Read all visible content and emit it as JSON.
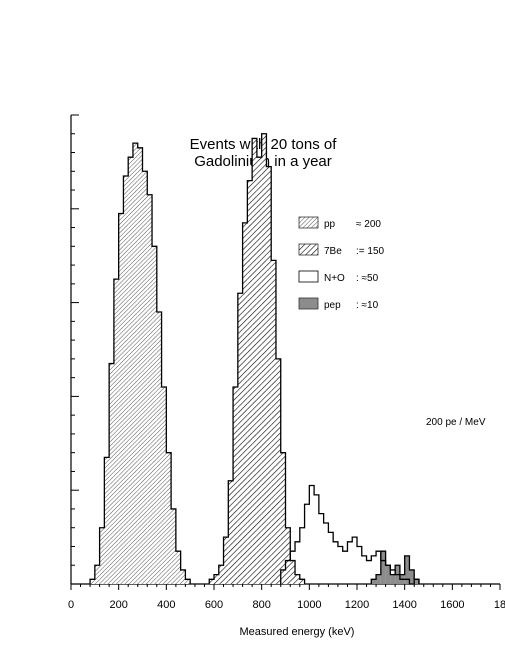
{
  "chart_data": {
    "type": "bar",
    "title": [
      "Events with 20 tons of",
      "Gadolinium in a year"
    ],
    "xlabel": "Measured energy (keV)",
    "ylabel": "",
    "annotation": "200 pe / MeV",
    "xlim": [
      0,
      1800
    ],
    "ylim": [
      0,
      100
    ],
    "x_ticks": [
      "0",
      "200",
      "400",
      "600",
      "800",
      "1000",
      "1200",
      "1400",
      "1600",
      "18"
    ],
    "bin_width": 20,
    "legend": [
      {
        "label": "pp",
        "value": "≈ 200",
        "style": "dense-hatch"
      },
      {
        "label": "7Be",
        "value": ":= 150",
        "style": "hatch"
      },
      {
        "label": "N+O",
        "value": ": ≈50",
        "style": "open"
      },
      {
        "label": "pep",
        "value": ": ≈10",
        "style": "solid-grey"
      }
    ],
    "series": [
      {
        "name": "pp",
        "style": "dense-hatch",
        "x_start": 80,
        "values": [
          1,
          4,
          12,
          27,
          47,
          65,
          79,
          87,
          91,
          94,
          93,
          88,
          83,
          72,
          58,
          42,
          28,
          16,
          7,
          3,
          1
        ]
      },
      {
        "name": "7Be",
        "style": "hatch",
        "x_start": 580,
        "values": [
          1,
          2,
          4,
          10,
          22,
          42,
          62,
          77,
          86,
          95,
          91,
          96,
          89,
          69,
          48,
          28,
          12,
          5,
          2,
          1
        ]
      },
      {
        "name": "N+O",
        "style": "open",
        "x_start": 880,
        "values": [
          3,
          5,
          7,
          9,
          12,
          17,
          21,
          19,
          15,
          13,
          11,
          9,
          8,
          7,
          9,
          10,
          8,
          6,
          5,
          6,
          7,
          5,
          4,
          3,
          2,
          1,
          1,
          0,
          1
        ]
      },
      {
        "name": "pep",
        "style": "solid-grey",
        "x_start": 1260,
        "values": [
          1,
          2,
          7,
          4,
          2,
          4,
          2,
          6,
          3,
          1
        ]
      }
    ]
  }
}
